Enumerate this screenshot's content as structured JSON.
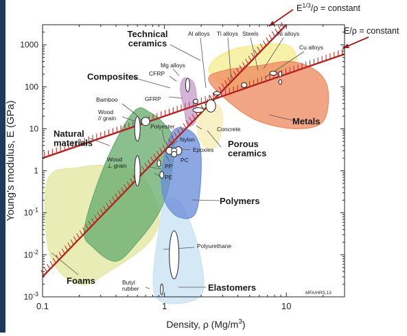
{
  "chart_data": {
    "type": "scatter",
    "xlabel": "Density, ρ  (Mg/m³)",
    "ylabel": "Young's modulus, E (GPa)",
    "xscale": "log",
    "yscale": "log",
    "xlim": [
      0.1,
      30
    ],
    "ylim": [
      0.001,
      3000
    ],
    "grid": false,
    "legend": "none",
    "x_ticks": [
      {
        "value": 0.1,
        "label": "0.1"
      },
      {
        "value": 1,
        "label": "1"
      },
      {
        "value": 10,
        "label": "10"
      }
    ],
    "y_ticks": [
      {
        "value": 1000,
        "label": "1000"
      },
      {
        "value": 100,
        "label": "100"
      },
      {
        "value": 10,
        "label": "10"
      },
      {
        "value": 1,
        "label": "1"
      },
      {
        "value": 0.1,
        "label": "10-1"
      },
      {
        "value": 0.01,
        "label": "10-2"
      },
      {
        "value": 0.001,
        "label": "10-3"
      }
    ],
    "guide_lines": [
      {
        "label": "E/ρ = constant",
        "points": [
          [
            0.1,
            2
          ],
          [
            30,
            600
          ]
        ]
      },
      {
        "label": "E1/3/ρ = constant",
        "points": [
          [
            0.1,
            0.003
          ],
          [
            10,
            3000
          ]
        ]
      }
    ],
    "families": [
      {
        "name": "Technical ceramics",
        "color": "#f5ec8f",
        "points": [
          [
            2.4,
            200
          ],
          [
            3.8,
            80
          ],
          [
            8,
            200
          ],
          [
            12,
            400
          ],
          [
            10,
            1000
          ],
          [
            4.5,
            900
          ],
          [
            3,
            600
          ],
          [
            2.4,
            350
          ]
        ]
      },
      {
        "name": "Metals",
        "color": "#ee8c62",
        "points": [
          [
            2.3,
            150
          ],
          [
            3.5,
            40
          ],
          [
            6,
            15
          ],
          [
            12,
            10
          ],
          [
            20,
            15
          ],
          [
            22,
            80
          ],
          [
            18,
            230
          ],
          [
            11,
            400
          ],
          [
            6,
            320
          ],
          [
            3.2,
            250
          ]
        ]
      },
      {
        "name": "Composites",
        "color": "#c9a0cc",
        "points": [
          [
            1.45,
            160
          ],
          [
            1.75,
            120
          ],
          [
            1.85,
            35
          ],
          [
            1.8,
            15
          ],
          [
            1.55,
            12
          ],
          [
            1.45,
            30
          ],
          [
            1.35,
            90
          ]
        ]
      },
      {
        "name": "Porous ceramics",
        "color": "#f6edb6",
        "points": [
          [
            1.9,
            20
          ],
          [
            2.2,
            35
          ],
          [
            2.8,
            35
          ],
          [
            3,
            15
          ],
          [
            2.7,
            4
          ],
          [
            2.2,
            3.5
          ],
          [
            1.9,
            7
          ]
        ]
      },
      {
        "name": "Natural materials",
        "color": "#6aad71",
        "points": [
          [
            0.22,
            0.04
          ],
          [
            0.3,
            0.8
          ],
          [
            0.45,
            10
          ],
          [
            0.6,
            30
          ],
          [
            0.75,
            25
          ],
          [
            0.95,
            15
          ],
          [
            1.2,
            5
          ],
          [
            1.1,
            0.5
          ],
          [
            0.9,
            0.1
          ],
          [
            0.6,
            0.02
          ],
          [
            0.4,
            0.007
          ],
          [
            0.26,
            0.015
          ]
        ]
      },
      {
        "name": "Polymers",
        "color": "#6c8ed8",
        "points": [
          [
            0.95,
            1
          ],
          [
            1.15,
            8
          ],
          [
            1.5,
            10
          ],
          [
            1.9,
            5
          ],
          [
            2,
            1
          ],
          [
            1.8,
            0.1
          ],
          [
            1.3,
            0.08
          ],
          [
            1,
            0.2
          ]
        ]
      },
      {
        "name": "Foams",
        "color": "#e3e8a0",
        "points": [
          [
            0.11,
            0.6
          ],
          [
            0.2,
            1.2
          ],
          [
            0.38,
            1.3
          ],
          [
            0.65,
            0.8
          ],
          [
            0.9,
            0.1
          ],
          [
            0.75,
            0.02
          ],
          [
            0.35,
            0.004
          ],
          [
            0.2,
            0.002
          ],
          [
            0.115,
            0.01
          ]
        ]
      },
      {
        "name": "Elastomers",
        "color": "#c9e2f2",
        "points": [
          [
            0.85,
            0.001
          ],
          [
            0.9,
            0.04
          ],
          [
            1.05,
            0.2
          ],
          [
            1.4,
            0.15
          ],
          [
            1.95,
            0.01
          ],
          [
            1.95,
            0.001
          ]
        ]
      }
    ],
    "materials": [
      {
        "name": "Al alloys",
        "x": 2.7,
        "y": 70
      },
      {
        "name": "Ti alloys",
        "x": 4.5,
        "y": 110
      },
      {
        "name": "Steels",
        "x": 7.8,
        "y": 210
      },
      {
        "name": "Ni alloys",
        "x": 8.9,
        "y": 200
      },
      {
        "name": "Cu alloys",
        "x": 8.9,
        "y": 130
      },
      {
        "name": "Mg alloys",
        "x": 1.8,
        "y": 45
      },
      {
        "name": "CFRP",
        "x": 1.55,
        "y": 110
      },
      {
        "name": "GFRP",
        "x": 1.9,
        "y": 28
      },
      {
        "name": "Concrete",
        "x": 2.4,
        "y": 35
      },
      {
        "name": "Bamboo",
        "x": 0.7,
        "y": 15
      },
      {
        "name": "Wood // grain",
        "x": 0.6,
        "y": 10
      },
      {
        "name": "Wood ⊥ grain",
        "x": 0.6,
        "y": 1
      },
      {
        "name": "Polyester",
        "x": 1.3,
        "y": 3
      },
      {
        "name": "Nylon",
        "x": 1.1,
        "y": 3
      },
      {
        "name": "Epoxies",
        "x": 1.2,
        "y": 3
      },
      {
        "name": "PC",
        "x": 1.2,
        "y": 2.5
      },
      {
        "name": "PP",
        "x": 0.9,
        "y": 1.5
      },
      {
        "name": "PE",
        "x": 0.95,
        "y": 0.8
      },
      {
        "name": "Polyurethane",
        "x": 1.2,
        "y": 0.01
      },
      {
        "name": "Butyl rubber",
        "x": 0.95,
        "y": 0.0015
      }
    ]
  },
  "labels": {
    "technical_ceramics": "Technical\nceramics",
    "composites": "Composites",
    "natural_materials": "Natural\nmaterials",
    "metals": "Metals",
    "porous_ceramics": "Porous\nceramics",
    "polymers": "Polymers",
    "foams": "Foams",
    "elastomers": "Elastomers",
    "al_alloys": "Al alloys",
    "ti_alloys": "Ti alloys",
    "steels": "Steels",
    "ni_alloys": "Ni alloys",
    "cu_alloys": "Cu alloys",
    "mg_alloys": "Mg alloys",
    "cfrp": "CFRP",
    "gfrp": "GFRP",
    "bamboo": "Bamboo",
    "wood_parallel": "Wood\n// grain",
    "polyester": "Polyester",
    "concrete": "Concrete",
    "nylon": "Nylon",
    "epoxies": "Epoxies",
    "pc": "PC",
    "wood_perp": "Wood\n⊥ grain",
    "pp": "PP",
    "pe": "PE",
    "polyurethane": "Polyurethane",
    "butyl_rubber": "Butyl\nrubber",
    "line_e_rho": "E/ρ = constant",
    "line_e13_rho": "E1/3/ρ = constant",
    "credit": "MFA/HRS,13"
  },
  "colors": {
    "line": "#b0211f",
    "hatch": "#c2322d",
    "annot": "#9e1a1a",
    "frame_strip": "#1d3a5c"
  }
}
